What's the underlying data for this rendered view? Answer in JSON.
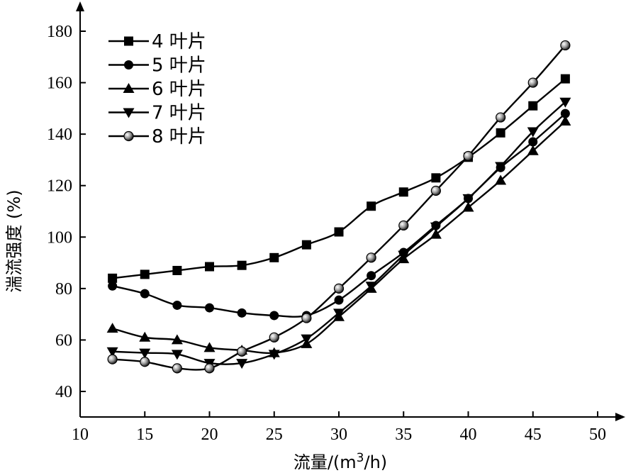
{
  "chart_data": {
    "type": "line",
    "xlabel": "流量/(m3/h)",
    "ylabel": "湍流强度 (%)",
    "xlim": [
      10,
      50
    ],
    "ylim": [
      40,
      180
    ],
    "x_ticks": [
      "10",
      "15",
      "20",
      "25",
      "30",
      "35",
      "40",
      "45",
      "50"
    ],
    "y_ticks": [
      "40",
      "60",
      "80",
      "100",
      "120",
      "140",
      "160",
      "180"
    ],
    "grid": false,
    "legend_position": "top-left",
    "series": [
      {
        "name": "4 叶片",
        "marker": "square",
        "x": [
          12.5,
          15,
          17.5,
          20,
          22.5,
          25,
          27.5,
          30,
          32.5,
          35,
          37.5,
          40,
          42.5,
          45,
          47.5
        ],
        "y": [
          84,
          85.5,
          87,
          88.5,
          89,
          92,
          97,
          102,
          112,
          117.5,
          123,
          131,
          140.5,
          151,
          161.5
        ]
      },
      {
        "name": "5 叶片",
        "marker": "circle",
        "x": [
          12.5,
          15,
          17.5,
          20,
          22.5,
          25,
          27.5,
          30,
          32.5,
          35,
          37.5,
          40,
          42.5,
          45,
          47.5
        ],
        "y": [
          81,
          78,
          73.5,
          72.5,
          70.5,
          69.5,
          69.5,
          75.5,
          85,
          94,
          104.5,
          115,
          127,
          137,
          148
        ]
      },
      {
        "name": "6 叶片",
        "marker": "triangle-up",
        "x": [
          12.5,
          15,
          17.5,
          20,
          22.5,
          25,
          27.5,
          30,
          32.5,
          35,
          37.5,
          40,
          42.5,
          45,
          47.5
        ],
        "y": [
          64.5,
          61,
          60,
          57,
          56,
          55,
          58.5,
          69,
          80,
          91.5,
          101,
          111.5,
          122,
          133.5,
          145
        ]
      },
      {
        "name": "7 叶片",
        "marker": "triangle-down",
        "x": [
          12.5,
          15,
          17.5,
          20,
          22.5,
          25,
          27.5,
          30,
          32.5,
          35,
          37.5,
          40,
          42.5,
          45,
          47.5
        ],
        "y": [
          55.5,
          55,
          54.5,
          51,
          51,
          54.5,
          60.5,
          70.5,
          81,
          93,
          104,
          115,
          127.5,
          141,
          152.5
        ]
      },
      {
        "name": "8 叶片",
        "marker": "shaded-circle",
        "x": [
          12.5,
          15,
          17.5,
          20,
          22.5,
          25,
          27.5,
          30,
          32.5,
          35,
          37.5,
          40,
          42.5,
          45,
          47.5
        ],
        "y": [
          52.5,
          51.5,
          49,
          49,
          55.5,
          61,
          68.5,
          80,
          92,
          104.5,
          118,
          131.5,
          146.5,
          160,
          174.5
        ]
      }
    ]
  }
}
